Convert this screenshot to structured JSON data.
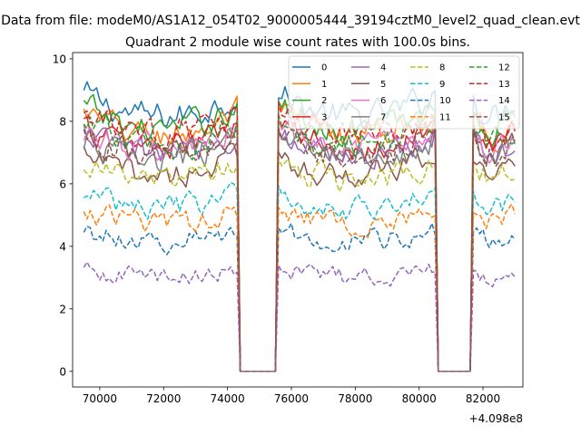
{
  "chart_data": {
    "type": "line",
    "suptitle": "Data from file: modeM0/AS1A12_054T02_9000005444_39194cztM0_level2_quad_clean.evt",
    "title": "Quadrant 2 module wise count rates with 100.0s bins.",
    "xlabel": "",
    "ylabel": "",
    "x_offset_label": "+4.098e8",
    "xlim": [
      69150,
      83250
    ],
    "ylim": [
      -0.5,
      10.2
    ],
    "xticks": [
      70000,
      72000,
      74000,
      76000,
      78000,
      80000,
      82000
    ],
    "xtick_labels": [
      "70000",
      "72000",
      "74000",
      "76000",
      "78000",
      "80000",
      "82000"
    ],
    "yticks": [
      0,
      2,
      4,
      6,
      8,
      10
    ],
    "ytick_labels": [
      "0",
      "2",
      "4",
      "6",
      "8",
      "10"
    ],
    "grid": false,
    "legend_position": "top-right",
    "legend_columns": 4,
    "x_start": 69500,
    "bin_width": 100,
    "n_bins": 136,
    "segments": [
      {
        "from": 69500,
        "to": 74300,
        "state": "on"
      },
      {
        "from": 74400,
        "to": 75500,
        "state": "off"
      },
      {
        "from": 75600,
        "to": 80500,
        "state": "on"
      },
      {
        "from": 80600,
        "to": 81600,
        "state": "off"
      },
      {
        "from": 81700,
        "to": 83000,
        "state": "on"
      }
    ],
    "series": [
      {
        "name": "0",
        "color": "#1f77b4",
        "dash": "solid",
        "level": 8.4
      },
      {
        "name": "1",
        "color": "#ff7f0e",
        "dash": "solid",
        "level": 7.8
      },
      {
        "name": "2",
        "color": "#2ca02c",
        "dash": "solid",
        "level": 8.0
      },
      {
        "name": "3",
        "color": "#d62728",
        "dash": "solid",
        "level": 7.4
      },
      {
        "name": "4",
        "color": "#9467bd",
        "dash": "solid",
        "level": 7.2
      },
      {
        "name": "5",
        "color": "#8c564b",
        "dash": "solid",
        "level": 6.5
      },
      {
        "name": "6",
        "color": "#e377c2",
        "dash": "solid",
        "level": 7.3
      },
      {
        "name": "7",
        "color": "#7f7f7f",
        "dash": "solid",
        "level": 7.0
      },
      {
        "name": "8",
        "color": "#bcbd22",
        "dash": "dashed",
        "level": 6.3
      },
      {
        "name": "9",
        "color": "#17becf",
        "dash": "dashed",
        "level": 5.4
      },
      {
        "name": "10",
        "color": "#1f77b4",
        "dash": "dashed",
        "level": 4.3
      },
      {
        "name": "11",
        "color": "#ff7f0e",
        "dash": "dashed",
        "level": 4.9
      },
      {
        "name": "12",
        "color": "#2ca02c",
        "dash": "dashed",
        "level": 7.5
      },
      {
        "name": "13",
        "color": "#d62728",
        "dash": "dashed",
        "level": 7.8
      },
      {
        "name": "14",
        "color": "#9467bd",
        "dash": "dashed",
        "level": 3.1
      },
      {
        "name": "15",
        "color": "#8c564b",
        "dash": "dashed",
        "level": 7.2
      }
    ]
  }
}
